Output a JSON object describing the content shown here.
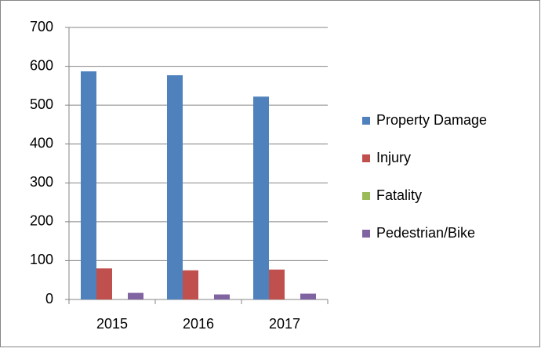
{
  "chart_data": {
    "type": "bar",
    "categories": [
      "2015",
      "2016",
      "2017"
    ],
    "series": [
      {
        "name": "Property Damage",
        "color": "#4f81bd",
        "values": [
          587,
          577,
          522
        ]
      },
      {
        "name": "Injury",
        "color": "#c0504d",
        "values": [
          80,
          75,
          77
        ]
      },
      {
        "name": "Fatality",
        "color": "#9bbb59",
        "values": [
          0,
          0,
          0
        ]
      },
      {
        "name": "Pedestrian/Bike",
        "color": "#8064a2",
        "values": [
          17,
          13,
          15
        ]
      }
    ],
    "ylim": [
      0,
      700
    ],
    "yticks": [
      0,
      100,
      200,
      300,
      400,
      500,
      600,
      700
    ],
    "grid": true,
    "legend": "right"
  }
}
